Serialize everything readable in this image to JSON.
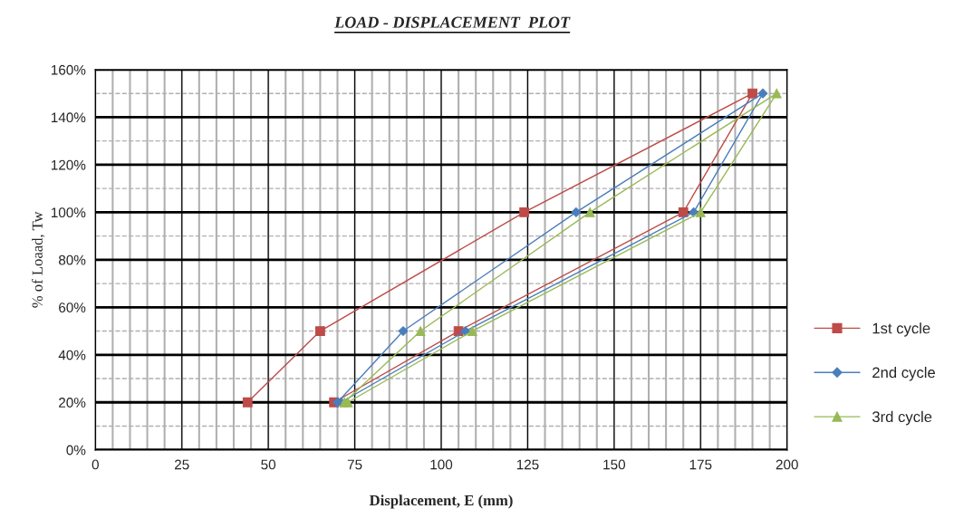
{
  "chart_data": {
    "type": "line",
    "title": "LOAD - DISPLACEMENT  PLOT",
    "xlabel": "Displacement, E (mm)",
    "ylabel": "% of Loaad, Tw",
    "series": [
      {
        "name": "1st cycle",
        "color": "#be4b48",
        "marker": "square",
        "x": [
          44,
          65,
          124,
          190,
          170,
          105,
          69
        ],
        "values": [
          20,
          50,
          100,
          150,
          100,
          50,
          20
        ]
      },
      {
        "name": "2nd cycle",
        "color": "#4a7ebb",
        "marker": "diamond",
        "x": [
          70,
          89,
          139,
          193,
          173,
          107,
          71
        ],
        "values": [
          20,
          50,
          100,
          150,
          100,
          50,
          20
        ]
      },
      {
        "name": "3rd cycle",
        "color": "#98b954",
        "marker": "triangle",
        "x": [
          72,
          94,
          143,
          197,
          175,
          109,
          73
        ],
        "values": [
          20,
          50,
          100,
          150,
          100,
          50,
          20
        ]
      }
    ],
    "xlim": [
      0,
      200
    ],
    "xticks": [
      0,
      25,
      50,
      75,
      100,
      125,
      150,
      175,
      200
    ],
    "ylim": [
      0,
      160
    ],
    "yticks": [
      {
        "value": 0,
        "label": "0%"
      },
      {
        "value": 20,
        "label": "20%"
      },
      {
        "value": 40,
        "label": "40%"
      },
      {
        "value": 60,
        "label": "60%"
      },
      {
        "value": 80,
        "label": "80%"
      },
      {
        "value": 100,
        "label": "100%"
      },
      {
        "value": 120,
        "label": "120%"
      },
      {
        "value": 140,
        "label": "140%"
      },
      {
        "value": 160,
        "label": "160%"
      }
    ],
    "grid": true,
    "legend": "right",
    "line_style": "solid"
  }
}
